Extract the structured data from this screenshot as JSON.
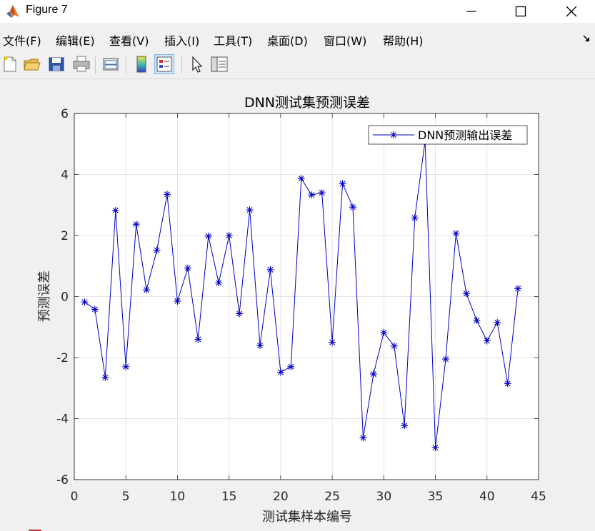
{
  "window": {
    "title": "Figure 7",
    "controls": [
      "minimize",
      "maximize",
      "close"
    ]
  },
  "menu": {
    "items": [
      "文件(F)",
      "编辑(E)",
      "查看(V)",
      "插入(I)",
      "工具(T)",
      "桌面(D)",
      "窗口(W)",
      "帮助(H)"
    ]
  },
  "toolbar": {
    "buttons": [
      "new-figure-icon",
      "open-file-icon",
      "save-icon",
      "print-icon",
      "link-plot-icon",
      "insert-colorbar-icon",
      "insert-legend-icon",
      "edit-plot-arrow-icon",
      "property-inspector-icon"
    ],
    "active": "insert-legend-icon"
  },
  "chart_data": {
    "type": "line",
    "title": "DNN测试集预测误差",
    "xlabel": "测试集样本编号",
    "ylabel": "预测误差",
    "xlim": [
      0,
      45
    ],
    "ylim": [
      -6,
      6
    ],
    "xticks": [
      0,
      5,
      10,
      15,
      20,
      25,
      30,
      35,
      40,
      45
    ],
    "yticks": [
      -6,
      -4,
      -2,
      0,
      2,
      4,
      6
    ],
    "grid": true,
    "legend_position": "top-right",
    "marker": "asterisk",
    "color": "#0000c8",
    "series": [
      {
        "name": "DNN预测输出误差",
        "x": [
          1,
          2,
          3,
          4,
          5,
          6,
          7,
          8,
          9,
          10,
          11,
          12,
          13,
          14,
          15,
          16,
          17,
          18,
          19,
          20,
          21,
          22,
          23,
          24,
          25,
          26,
          27,
          28,
          29,
          30,
          31,
          32,
          33,
          34,
          35,
          36,
          37,
          38,
          39,
          40,
          41,
          42,
          43
        ],
        "y": [
          -0.18,
          -0.42,
          -2.65,
          2.82,
          -2.3,
          2.37,
          0.22,
          1.52,
          3.35,
          -0.15,
          0.93,
          -1.4,
          1.98,
          0.45,
          2.0,
          -0.56,
          2.84,
          -1.6,
          0.88,
          -2.48,
          -2.3,
          3.87,
          3.33,
          3.4,
          -1.5,
          3.7,
          2.93,
          -4.63,
          -2.54,
          -1.18,
          -1.62,
          -4.23,
          2.58,
          5.1,
          -4.95,
          -2.05,
          2.07,
          0.1,
          -0.78,
          -1.45,
          -0.85,
          -2.85,
          0.26
        ]
      }
    ]
  }
}
